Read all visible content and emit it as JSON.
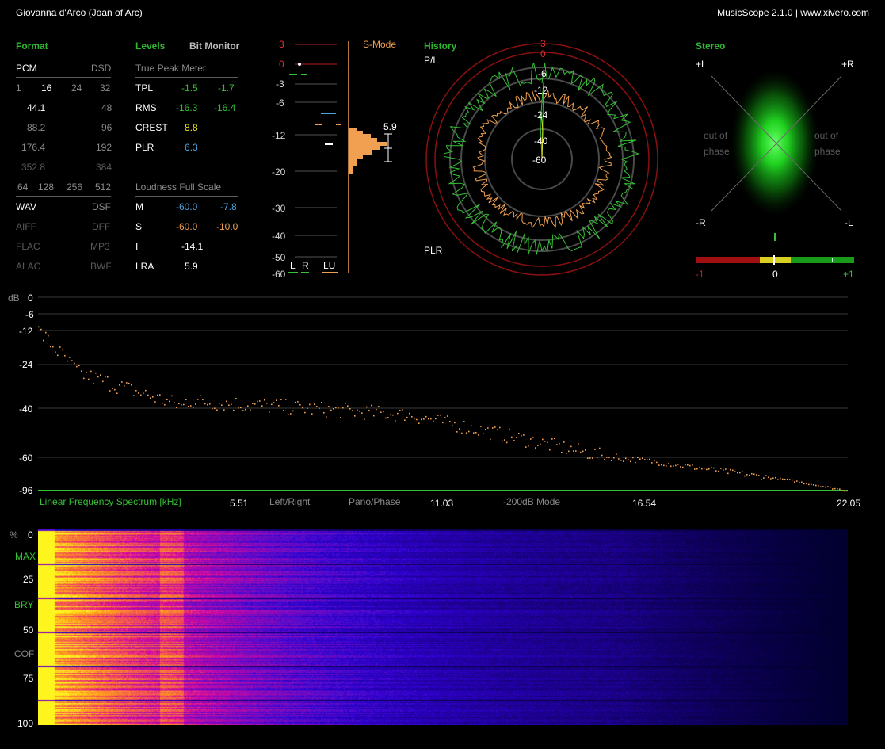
{
  "title": "Giovanna d'Arco (Joan of Arc)",
  "app_title": "MusicScope 2.1.0 | www.xivero.com",
  "format": {
    "header": "Format",
    "pcm_label": "PCM",
    "dsd_label": "DSD",
    "bits": [
      "1",
      "16",
      "24",
      "32"
    ],
    "rates": [
      {
        "pcm": "44.1",
        "dsd": "48"
      },
      {
        "pcm": "88.2",
        "dsd": "96"
      },
      {
        "pcm": "176.4",
        "dsd": "192"
      },
      {
        "pcm": "352.8",
        "dsd": "384"
      }
    ],
    "dsd_rates": [
      "64",
      "128",
      "256",
      "512"
    ],
    "files": [
      {
        "left": "WAV",
        "right": "DSF"
      },
      {
        "left": "AIFF",
        "right": "DFF"
      },
      {
        "left": "FLAC",
        "right": "MP3"
      },
      {
        "left": "ALAC",
        "right": "BWF"
      }
    ]
  },
  "levels": {
    "header": "Levels",
    "bit_monitor": "Bit Monitor",
    "true_peak_title": "True Peak Meter",
    "rows": [
      {
        "label": "TPL",
        "a": "-1.5",
        "b": "-1.7"
      },
      {
        "label": "RMS",
        "a": "-16.3",
        "b": "-16.4"
      },
      {
        "label": "CREST",
        "a": "8.8",
        "b": ""
      },
      {
        "label": "PLR",
        "a": "6.3",
        "b": ""
      }
    ],
    "loudness_title": "Loudness Full Scale",
    "loudness_rows": [
      {
        "label": "M",
        "a": "-60.0",
        "b": "-7.8"
      },
      {
        "label": "S",
        "a": "-60.0",
        "b": "-10.0"
      },
      {
        "label": "I",
        "a": "-14.1",
        "b": ""
      },
      {
        "label": "LRA",
        "a": "5.9",
        "b": ""
      }
    ]
  },
  "meter": {
    "mode": "S-Mode",
    "scale": [
      "3",
      "0",
      "-3",
      "-6",
      "-12",
      "-20",
      "-30",
      "-40",
      "-50",
      "-60"
    ],
    "lra_value": "5.9",
    "channel_labels": [
      "L",
      "R",
      "LU"
    ]
  },
  "history": {
    "header": "History",
    "pl_label": "P/L",
    "plr_label": "PLR",
    "ring_labels": [
      "3",
      "0",
      "-6",
      "-12",
      "-24",
      "-40",
      "-60"
    ]
  },
  "stereo": {
    "header": "Stereo",
    "corners": {
      "top_left": "+L",
      "top_right": "+R",
      "bottom_left": "-R",
      "bottom_right": "-L"
    },
    "out_of_phase": [
      "out of",
      "phase"
    ],
    "correlation_labels": [
      "-1",
      "0",
      "+1"
    ],
    "correlation_value": 0.0
  },
  "spectrum": {
    "db_unit": "dB",
    "db_ticks": [
      "0",
      "-6",
      "-12",
      "-24",
      "-40",
      "-60",
      "-96"
    ],
    "label": "Linear Frequency Spectrum [kHz]",
    "freq_ticks": [
      "5.51",
      "11.03",
      "16.54",
      "22.05"
    ],
    "options": [
      "Left/Right",
      "Pano/Phase",
      "-200dB Mode"
    ]
  },
  "spectrogram": {
    "ticks": [
      "%",
      "0",
      "25",
      "50",
      "75",
      "100"
    ],
    "markers": [
      "MAX",
      "BRY",
      "COF"
    ]
  },
  "colors": {
    "accent_green": "#35c035",
    "orange": "#f0a050",
    "blue": "#4aa3e0",
    "ring_red": "#8a1010"
  }
}
